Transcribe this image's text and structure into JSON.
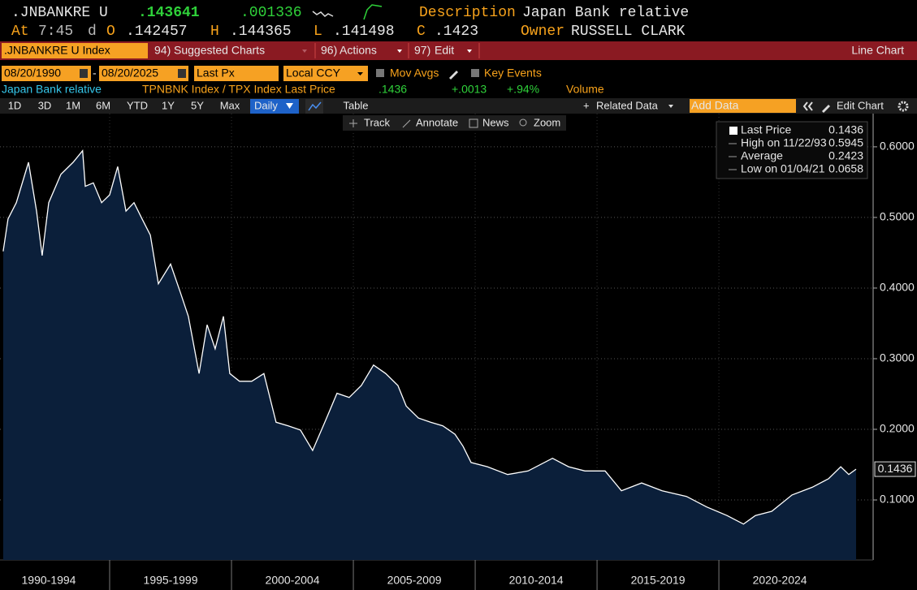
{
  "header": {
    "ticker": ".JNBANKRE U",
    "last": ".143641",
    "change": ".001336",
    "description_label": "Description",
    "description": "Japan Bank relative",
    "at_label": "At",
    "time": "7:45",
    "d": "d",
    "open_label": "O",
    "open": ".142457",
    "high_label": "H",
    "high": ".144365",
    "low_label": "L",
    "low": ".141498",
    "close_label": "C",
    "close": ".1423",
    "owner_label": "Owner",
    "owner": "RUSSELL CLARK"
  },
  "toolbar": {
    "security": ".JNBANKRE U Index",
    "menus": [
      {
        "code": "94)",
        "label": "Suggested Charts"
      },
      {
        "code": "96)",
        "label": "Actions"
      },
      {
        "code": "97)",
        "label": "Edit"
      }
    ],
    "chart_type": "Line Chart"
  },
  "settings": {
    "start_date": "08/20/1990",
    "date_separator": "-",
    "end_date": "08/20/2025",
    "field": "Last Px",
    "currency": "Local CCY",
    "options": [
      "Mov Avgs",
      "Key Events"
    ]
  },
  "info_row": {
    "name": "Japan Bank relative",
    "security": "TPNBNK Index / TPX Index Last Price",
    "last": ".1436",
    "change": "+.0013",
    "pct": "+.94%",
    "volume": "Volume"
  },
  "controls": {
    "periods": [
      "1D",
      "3D",
      "1M",
      "6M",
      "YTD",
      "1Y",
      "5Y",
      "Max"
    ],
    "frequency": "Daily",
    "table": "Table",
    "related": "Related Data",
    "add_data": "Add Data",
    "edit_chart": "Edit Chart"
  },
  "chart_tools": [
    "Track",
    "Annotate",
    "News",
    "Zoom"
  ],
  "chart_data": {
    "type": "area",
    "x": [
      1990.63,
      1990.83,
      1991.17,
      1991.67,
      1992.0,
      1992.23,
      1992.5,
      1993.0,
      1993.5,
      1993.89,
      1994.0,
      1994.33,
      1994.67,
      1995.0,
      1995.33,
      1995.67,
      1996.0,
      1996.33,
      1996.67,
      1997.0,
      1997.5,
      1997.9,
      1998.23,
      1998.67,
      1999.0,
      1999.33,
      1999.67,
      1999.93,
      2000.33,
      2000.83,
      2001.33,
      2001.83,
      2002.33,
      2002.83,
      2003.33,
      2003.83,
      2004.33,
      2004.83,
      2005.33,
      2005.83,
      2006.33,
      2006.83,
      2007.17,
      2007.67,
      2008.17,
      2008.67,
      2009.17,
      2009.5,
      2009.83,
      2010.5,
      2011.33,
      2012.17,
      2013.17,
      2013.83,
      2014.5,
      2015.33,
      2016.0,
      2016.83,
      2017.67,
      2018.67,
      2019.5,
      2020.33,
      2021.01,
      2021.5,
      2022.17,
      2023.0,
      2023.83,
      2024.5,
      2025.0,
      2025.33,
      2025.63
    ],
    "series": [
      {
        "name": "Last Price",
        "color": "#ffffff",
        "fill": "#0b1f3a",
        "values": [
          0.452,
          0.498,
          0.521,
          0.578,
          0.509,
          0.446,
          0.521,
          0.561,
          0.578,
          0.5945,
          0.544,
          0.549,
          0.521,
          0.532,
          0.572,
          0.509,
          0.521,
          0.498,
          0.475,
          0.406,
          0.434,
          0.394,
          0.36,
          0.279,
          0.348,
          0.314,
          0.36,
          0.279,
          0.268,
          0.268,
          0.279,
          0.21,
          0.205,
          0.199,
          0.17,
          0.21,
          0.251,
          0.245,
          0.262,
          0.291,
          0.279,
          0.262,
          0.233,
          0.216,
          0.21,
          0.205,
          0.193,
          0.176,
          0.153,
          0.147,
          0.136,
          0.141,
          0.159,
          0.147,
          0.141,
          0.141,
          0.113,
          0.124,
          0.113,
          0.105,
          0.09,
          0.078,
          0.0658,
          0.078,
          0.084,
          0.107,
          0.118,
          0.13,
          0.147,
          0.136,
          0.1436
        ]
      }
    ],
    "last_value": 0.1436,
    "stats": [
      {
        "label": "High on 11/22/93",
        "value": 0.5945
      },
      {
        "label": "Average",
        "value": 0.2423
      },
      {
        "label": "Low on 01/04/21",
        "value": 0.0658
      }
    ],
    "xlim": [
      1990.5,
      2026.33
    ],
    "xticks": [
      {
        "value": 1990,
        "label": "1990-1994"
      },
      {
        "value": 1995,
        "label": "1995-1999"
      },
      {
        "value": 2000,
        "label": "2000-2004"
      },
      {
        "value": 2005,
        "label": "2005-2009"
      },
      {
        "value": 2010,
        "label": "2010-2014"
      },
      {
        "value": 2015,
        "label": "2015-2019"
      },
      {
        "value": 2020,
        "label": "2020-2024"
      }
    ],
    "ylim": [
      0.015,
      0.647
    ],
    "yticks": [
      {
        "value": 0.1,
        "label": "0.1000"
      },
      {
        "value": 0.2,
        "label": "0.2000"
      },
      {
        "value": 0.3,
        "label": "0.3000"
      },
      {
        "value": 0.4,
        "label": "0.4000"
      },
      {
        "value": 0.5,
        "label": "0.5000"
      },
      {
        "value": 0.6,
        "label": "0.6000"
      }
    ],
    "grid": true
  }
}
